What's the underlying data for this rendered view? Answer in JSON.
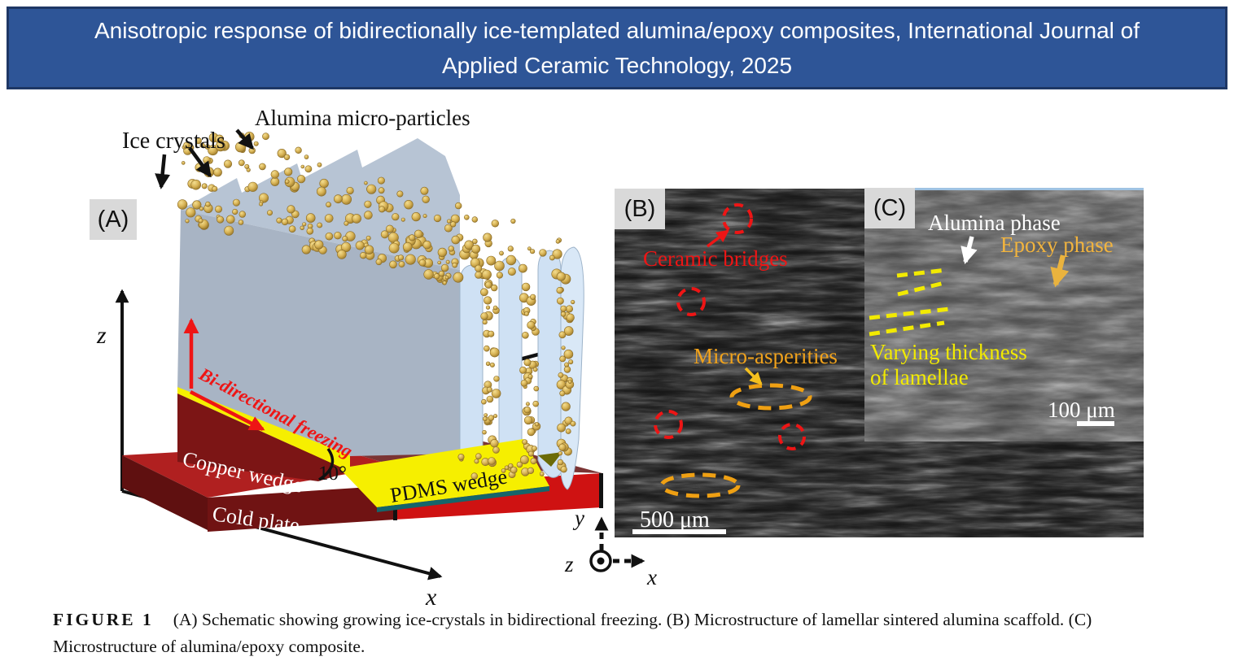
{
  "banner": {
    "title": "Anisotropic response of bidirectionally ice-templated alumina/epoxy composites, International Journal of Applied Ceramic Technology, 2025"
  },
  "panels": {
    "a": {
      "label": "(A)",
      "ice_crystals": "Ice crystals",
      "alumina_particles": "Alumina micro-particles",
      "freezing_direction": "Bi-directional freezing",
      "copper_wedge": "Copper wedge",
      "wedge_angle": "10°",
      "pdms_wedge": "PDMS wedge",
      "cold_plate": "Cold plate",
      "axis_x": "x",
      "axis_y": "y",
      "axis_z": "z"
    },
    "b": {
      "label": "(B)",
      "ceramic_bridges": "Ceramic bridges",
      "micro_asperities": "Micro-asperities",
      "scale_bar": "500 μm",
      "axis_x": "x",
      "axis_y": "y",
      "axis_z": "z"
    },
    "c": {
      "label": "(C)",
      "alumina_phase": "Alumina phase",
      "epoxy_phase": "Epoxy phase",
      "varying_thickness_line1": "Varying thickness",
      "varying_thickness_line2": "of lamellae",
      "scale_bar": "100 μm"
    }
  },
  "caption": {
    "tag": "FIGURE 1",
    "text": "(A) Schematic showing growing ice-crystals in bidirectional freezing. (B) Microstructure of lamellar sintered alumina scaffold. (C) Microstructure of alumina/epoxy composite."
  },
  "colors": {
    "banner_bg": "#2e5597",
    "banner_border": "#1e3765",
    "annotation_red": "#ee1515",
    "annotation_orange": "#efa013",
    "annotation_yellow": "#f2ea00",
    "epoxy_label_color": "#f2b43e",
    "panel_label_bg": "#d9d9d9",
    "pdms_yellow": "#f6ef00",
    "copper_maroon": "#7c1515",
    "cold_plate_red": "#cf1212"
  }
}
